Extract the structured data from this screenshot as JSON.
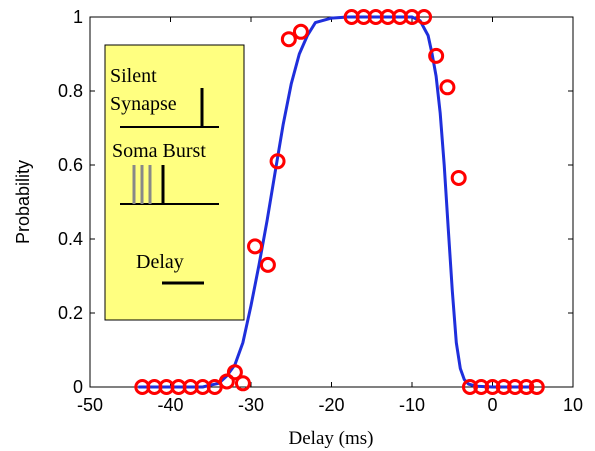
{
  "chart_data": {
    "type": "scatter",
    "title": "",
    "xlabel": "Delay (ms)",
    "ylabel": "Probability",
    "xlim": [
      -50,
      10
    ],
    "ylim": [
      0,
      1
    ],
    "xticks": [
      -50,
      -40,
      -30,
      -20,
      -10,
      0,
      10
    ],
    "yticks": [
      0,
      0.2,
      0.4,
      0.6,
      0.8,
      1
    ],
    "xtick_labels": [
      "-50",
      "-40",
      "-30",
      "-20",
      "-10",
      "0",
      "10"
    ],
    "ytick_labels": [
      "0",
      "0.2",
      "0.4",
      "0.6",
      "0.8",
      "1"
    ],
    "grid": false,
    "series": [
      {
        "kind": "markers",
        "marker": "open-circle",
        "color": "#ff0000",
        "x": [
          -43.5,
          -42,
          -40.5,
          -39,
          -37.5,
          -36,
          -34.5,
          -33,
          -32,
          -31,
          -29.5,
          -27.9,
          -26.7,
          -25.3,
          -23.8,
          -17.5,
          -16,
          -14.5,
          -13,
          -11.5,
          -10,
          -8.5,
          -7,
          -5.6,
          -4.2,
          -2.8,
          -1.4,
          0,
          1.4,
          2.8,
          4.2,
          5.5
        ],
        "y": [
          0,
          0,
          0,
          0,
          0,
          0,
          0,
          0.015,
          0.04,
          0.01,
          0.38,
          0.33,
          0.61,
          0.94,
          0.96,
          1,
          1,
          1,
          1,
          1,
          1,
          1,
          0.895,
          0.81,
          0.565,
          0,
          0,
          0,
          0,
          0,
          0,
          0
        ]
      },
      {
        "kind": "line",
        "color": "#1f2fdc",
        "x": [
          -44,
          -40,
          -36,
          -35,
          -34,
          -33,
          -32,
          -31,
          -30,
          -29,
          -28,
          -27,
          -26,
          -25,
          -24,
          -23,
          -22,
          -20,
          -18,
          -15,
          -12,
          -10,
          -9,
          -8.5,
          -8,
          -7.5,
          -7,
          -6.5,
          -6,
          -5.5,
          -5,
          -4.5,
          -4,
          -3.5,
          -3,
          -2,
          0,
          2,
          5
        ],
        "y": [
          0,
          0,
          0,
          0.005,
          0.01,
          0.03,
          0.06,
          0.12,
          0.22,
          0.33,
          0.45,
          0.58,
          0.71,
          0.82,
          0.9,
          0.95,
          0.985,
          0.997,
          1,
          1,
          1,
          1,
          0.99,
          0.97,
          0.95,
          0.9,
          0.84,
          0.74,
          0.6,
          0.43,
          0.26,
          0.12,
          0.05,
          0.02,
          0.008,
          0.002,
          0,
          0,
          0
        ]
      }
    ],
    "inset": {
      "background": "#ffff80",
      "labels": {
        "silent_line1": "Silent",
        "silent_line2": "Synapse",
        "soma_burst": "Soma Burst",
        "delay": "Delay"
      },
      "spike_colors": {
        "gray": "#888888",
        "black": "#000000"
      }
    }
  }
}
